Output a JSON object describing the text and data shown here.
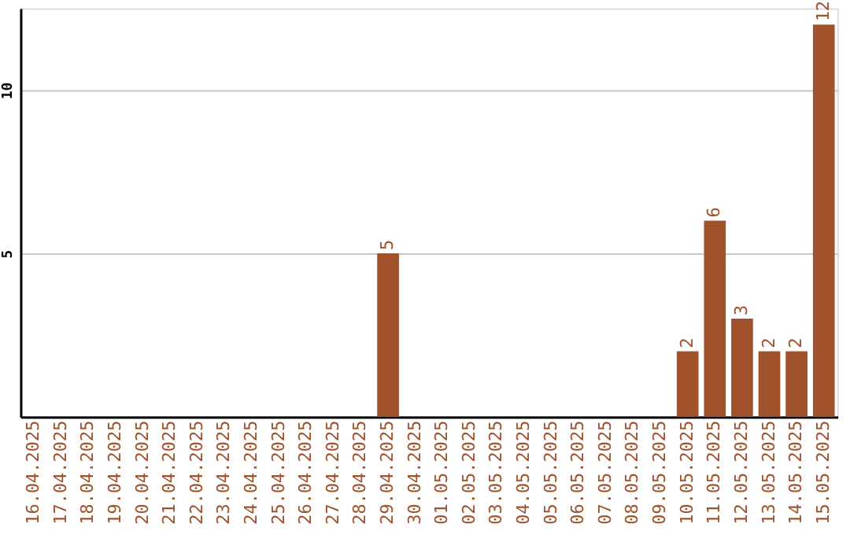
{
  "chart_data": {
    "type": "bar",
    "categories": [
      "16.04.2025",
      "17.04.2025",
      "18.04.2025",
      "19.04.2025",
      "20.04.2025",
      "21.04.2025",
      "22.04.2025",
      "23.04.2025",
      "24.04.2025",
      "25.04.2025",
      "26.04.2025",
      "27.04.2025",
      "28.04.2025",
      "29.04.2025",
      "30.04.2025",
      "01.05.2025",
      "02.05.2025",
      "03.05.2025",
      "04.05.2025",
      "05.05.2025",
      "06.05.2025",
      "07.05.2025",
      "08.05.2025",
      "09.05.2025",
      "10.05.2025",
      "11.05.2025",
      "12.05.2025",
      "13.05.2025",
      "14.05.2025",
      "15.05.2025"
    ],
    "values": [
      0,
      0,
      0,
      0,
      0,
      0,
      0,
      0,
      0,
      0,
      0,
      0,
      0,
      5,
      0,
      0,
      0,
      0,
      0,
      0,
      0,
      0,
      0,
      0,
      2,
      6,
      3,
      2,
      2,
      12
    ],
    "value_labels": [
      null,
      null,
      null,
      null,
      null,
      null,
      null,
      null,
      null,
      null,
      null,
      null,
      null,
      "5",
      null,
      null,
      null,
      null,
      null,
      null,
      null,
      null,
      null,
      null,
      "2",
      "6",
      "3",
      "2",
      "2",
      "12"
    ],
    "color": "#a0522d",
    "ylim": [
      0,
      12.5
    ],
    "yticks": [
      5,
      10
    ],
    "grid": "y"
  }
}
